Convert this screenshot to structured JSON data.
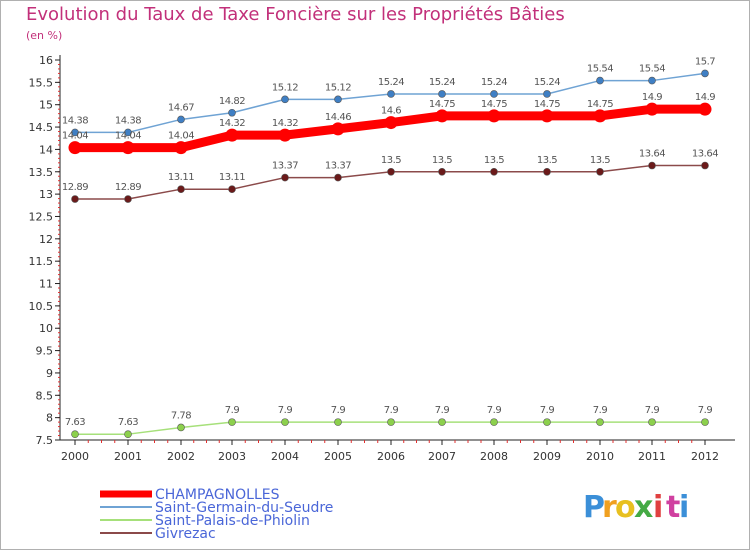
{
  "chart_data": {
    "type": "line",
    "title": "Evolution du Taux de Taxe Foncière sur les Propriétés Bâties",
    "subtitle": "(en %)",
    "categories": [
      "2000",
      "2001",
      "2002",
      "2003",
      "2004",
      "2005",
      "2006",
      "2007",
      "2008",
      "2009",
      "2010",
      "2011",
      "2012"
    ],
    "y_ticks": [
      "7.5",
      "8",
      "8.5",
      "9",
      "9.5",
      "10",
      "10.5",
      "11",
      "11.5",
      "12",
      "12.5",
      "13",
      "13.5",
      "14",
      "14.5",
      "15",
      "15.5",
      "16"
    ],
    "ylim": [
      7.5,
      16
    ],
    "grid": false,
    "legend_position": "bottom-left",
    "series": [
      {
        "name": "Saint-Germain-du-Seudre",
        "color": "#6fa3d4",
        "marker": "#3f7fc4",
        "values": [
          14.38,
          14.38,
          14.67,
          14.82,
          15.12,
          15.12,
          15.24,
          15.24,
          15.24,
          15.24,
          15.54,
          15.54,
          15.7
        ],
        "labels": [
          "14.38",
          "14.38",
          "14.67",
          "14.82",
          "15.12",
          "15.12",
          "15.24",
          "15.24",
          "15.24",
          "15.24",
          "15.54",
          "15.54",
          "15.7"
        ]
      },
      {
        "name": "CHAMPAGNOLLES",
        "color": "#ff0000",
        "marker": "#ff0000",
        "values": [
          14.04,
          14.04,
          14.04,
          14.32,
          14.32,
          14.46,
          14.6,
          14.75,
          14.75,
          14.75,
          14.75,
          14.9,
          14.9
        ],
        "labels": [
          "14.04",
          "14.04",
          "14.04",
          "14.32",
          "14.32",
          "14.46",
          "14.6",
          "14.75",
          "14.75",
          "14.75",
          "14.75",
          "14.9",
          "14.9"
        ]
      },
      {
        "name": "Givrezac",
        "color": "#8b4a4a",
        "marker": "#6b1a1a",
        "values": [
          12.89,
          12.89,
          13.11,
          13.11,
          13.37,
          13.37,
          13.5,
          13.5,
          13.5,
          13.5,
          13.5,
          13.64,
          13.64
        ],
        "labels": [
          "12.89",
          "12.89",
          "13.11",
          "13.11",
          "13.37",
          "13.37",
          "13.5",
          "13.5",
          "13.5",
          "13.5",
          "13.5",
          "13.64",
          "13.64"
        ]
      },
      {
        "name": "Saint-Palais-de-Phiolin",
        "color": "#a6e07a",
        "marker": "#8cd04c",
        "values": [
          7.63,
          7.63,
          7.78,
          7.9,
          7.9,
          7.9,
          7.9,
          7.9,
          7.9,
          7.9,
          7.9,
          7.9,
          7.9
        ],
        "labels": [
          "7.63",
          "7.63",
          "7.78",
          "7.9",
          "7.9",
          "7.9",
          "7.9",
          "7.9",
          "7.9",
          "7.9",
          "7.9",
          "7.9",
          "7.9"
        ]
      }
    ],
    "legend": [
      {
        "name": "CHAMPAGNOLLES",
        "color": "#ff0000"
      },
      {
        "name": "Saint-Germain-du-Seudre",
        "color": "#6fa3d4"
      },
      {
        "name": "Saint-Palais-de-Phiolin",
        "color": "#a6e07a"
      },
      {
        "name": "Givrezac",
        "color": "#8b4a4a"
      }
    ]
  },
  "logo": {
    "letters": [
      "P",
      "r",
      "o",
      "x",
      "i",
      "t",
      "i"
    ],
    "colors": [
      "#3b8fd8",
      "#f0a020",
      "#e8c020",
      "#44aa44",
      "#e04040",
      "#d040a0",
      "#3b8fd8"
    ]
  }
}
